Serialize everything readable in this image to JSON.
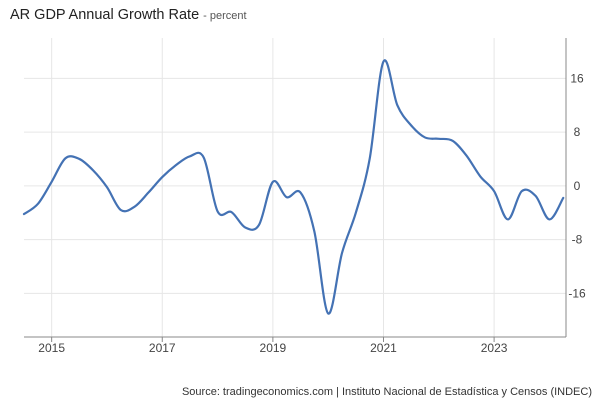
{
  "header": {
    "title": "AR GDP Annual Growth Rate",
    "subtitle": "- percent"
  },
  "footer": {
    "source": "Source: tradingeconomics.com | Instituto Nacional de Estadística y Censos (INDEC)"
  },
  "colors": {
    "line": "#4472b4",
    "grid": "#e6e6e6",
    "axis": "#888888"
  },
  "chart_data": {
    "type": "line",
    "title": "AR GDP Annual Growth Rate - percent",
    "xlabel": "",
    "ylabel": "percent",
    "xlim": [
      2014.5,
      2024.3
    ],
    "ylim": [
      -22.5,
      22
    ],
    "y_axis_side": "right",
    "x_ticks": [
      2015,
      2017,
      2019,
      2021,
      2023
    ],
    "x_tick_labels": [
      "2015",
      "2017",
      "2019",
      "2021",
      "2023"
    ],
    "y_ticks": [
      16,
      8,
      0,
      -8,
      -16
    ],
    "y_tick_labels": [
      "16",
      "8",
      "0",
      "-8",
      "-16"
    ],
    "grid": true,
    "series": [
      {
        "name": "AR GDP Annual Growth Rate",
        "x": [
          2014.5,
          2014.75,
          2015.0,
          2015.25,
          2015.5,
          2015.75,
          2016.0,
          2016.25,
          2016.5,
          2016.75,
          2017.0,
          2017.25,
          2017.5,
          2017.75,
          2018.0,
          2018.25,
          2018.5,
          2018.75,
          2019.0,
          2019.25,
          2019.5,
          2019.75,
          2020.0,
          2020.25,
          2020.5,
          2020.75,
          2021.0,
          2021.25,
          2021.5,
          2021.75,
          2022.0,
          2022.25,
          2022.5,
          2022.75,
          2023.0,
          2023.25,
          2023.5,
          2023.75,
          2024.0,
          2024.25
        ],
        "values": [
          -4.2,
          -2.7,
          0.6,
          4.1,
          4.0,
          2.3,
          -0.2,
          -3.6,
          -3.1,
          -1.0,
          1.3,
          3.1,
          4.4,
          4.2,
          -3.8,
          -3.9,
          -6.2,
          -5.8,
          0.6,
          -1.7,
          -1.0,
          -6.8,
          -19.0,
          -10.0,
          -4.0,
          4.0,
          18.5,
          12.0,
          9.0,
          7.2,
          7.0,
          6.7,
          4.5,
          1.4,
          -0.8,
          -5.0,
          -0.8,
          -1.5,
          -5.0,
          -1.8
        ]
      }
    ]
  }
}
